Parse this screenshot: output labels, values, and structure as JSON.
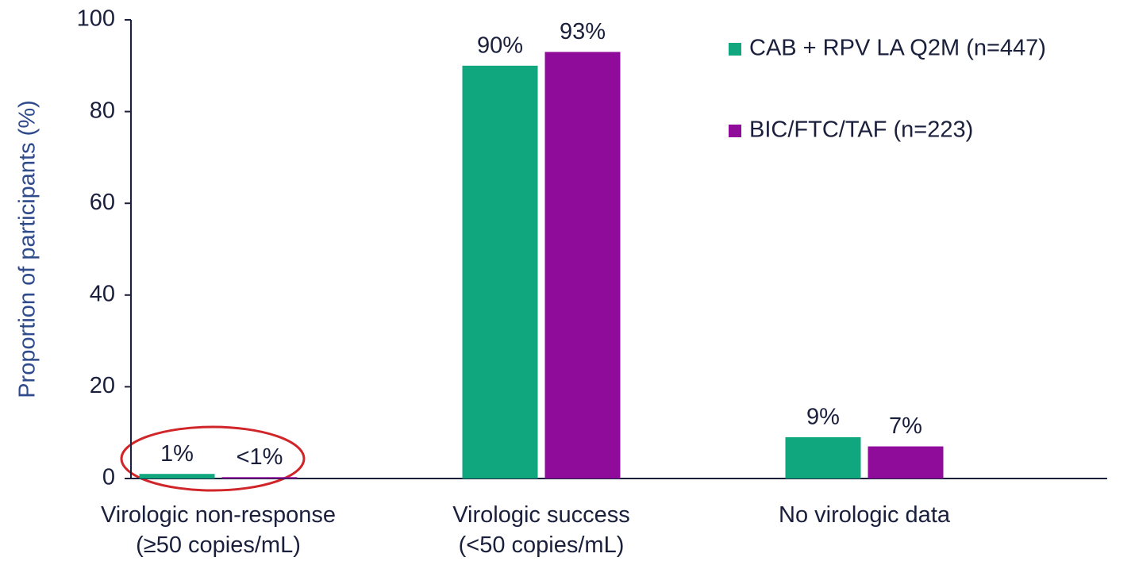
{
  "chart_data": {
    "type": "bar",
    "y_label": "Proportion of participants (%)",
    "categories": [
      [
        "Virologic non-response",
        "(≥50 copies/mL)"
      ],
      [
        "Virologic success",
        "(<50 copies/mL)"
      ],
      [
        "No virologic data"
      ]
    ],
    "series": [
      {
        "name": "CAB + RPV LA Q2M (n=447)",
        "color": "#10a77f",
        "values": [
          1,
          90,
          9
        ],
        "value_labels": [
          "1%",
          "90%",
          "9%"
        ]
      },
      {
        "name": "BIC/FTC/TAF (n=223)",
        "color": "#8f0b9a",
        "values": [
          0.3,
          93,
          7
        ],
        "value_labels": [
          "<1%",
          "93%",
          "7%"
        ]
      }
    ],
    "ylim": [
      0,
      100
    ],
    "yticks": [
      0,
      20,
      40,
      60,
      80,
      100
    ],
    "legend": "top-right"
  }
}
